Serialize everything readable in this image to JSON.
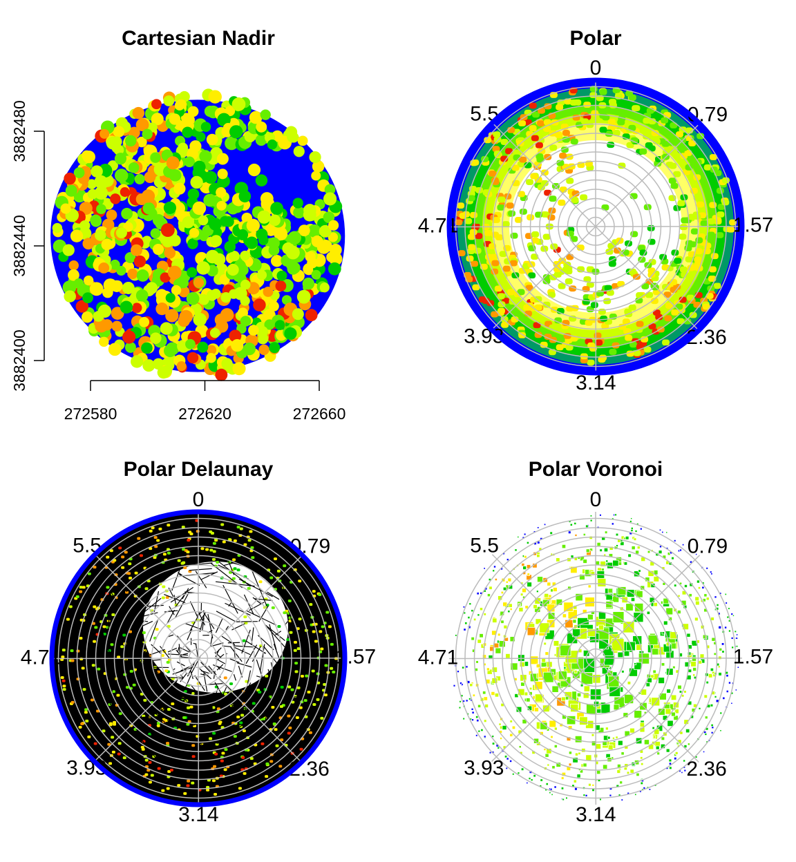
{
  "chart_data": [
    {
      "type": "scatter",
      "title": "Cartesian Nadir",
      "xlim": [
        272566,
        272669
      ],
      "ylim": [
        3882396,
        3882491
      ],
      "xticks": [
        272580,
        272620,
        272660
      ],
      "yticks": [
        3882400,
        3882440,
        3882480
      ],
      "colors": [
        "#0000ff",
        "#00cc00",
        "#66ee00",
        "#ccff00",
        "#ffee00",
        "#ff9900",
        "#ee2200"
      ]
    },
    {
      "type": "polar",
      "title": "Polar",
      "thetaticks": [
        0,
        0.79,
        1.57,
        2.36,
        3.14,
        3.93,
        4.71,
        5.5
      ],
      "colors": [
        "#0000ff",
        "#00cc00",
        "#66ee00",
        "#ccff00",
        "#ffee00",
        "#ff9900",
        "#ee2200"
      ]
    },
    {
      "type": "delaunay",
      "title": "Polar Delaunay",
      "thetaticks": [
        0,
        0.79,
        1.57,
        2.36,
        3.14,
        3.93,
        4.71,
        5.5
      ],
      "colors": [
        "#0000ff",
        "#00cc00",
        "#66ee00",
        "#ccff00",
        "#ffee00",
        "#ff9900",
        "#ee2200"
      ]
    },
    {
      "type": "voronoi",
      "title": "Polar Voronoi",
      "thetaticks": [
        0,
        0.79,
        1.57,
        2.36,
        3.14,
        3.93,
        4.71,
        5.5
      ],
      "colors": [
        "#0000ff",
        "#00cc00",
        "#66ee00",
        "#ccff00",
        "#ffee00",
        "#ff9900",
        "#ee2200"
      ]
    }
  ]
}
